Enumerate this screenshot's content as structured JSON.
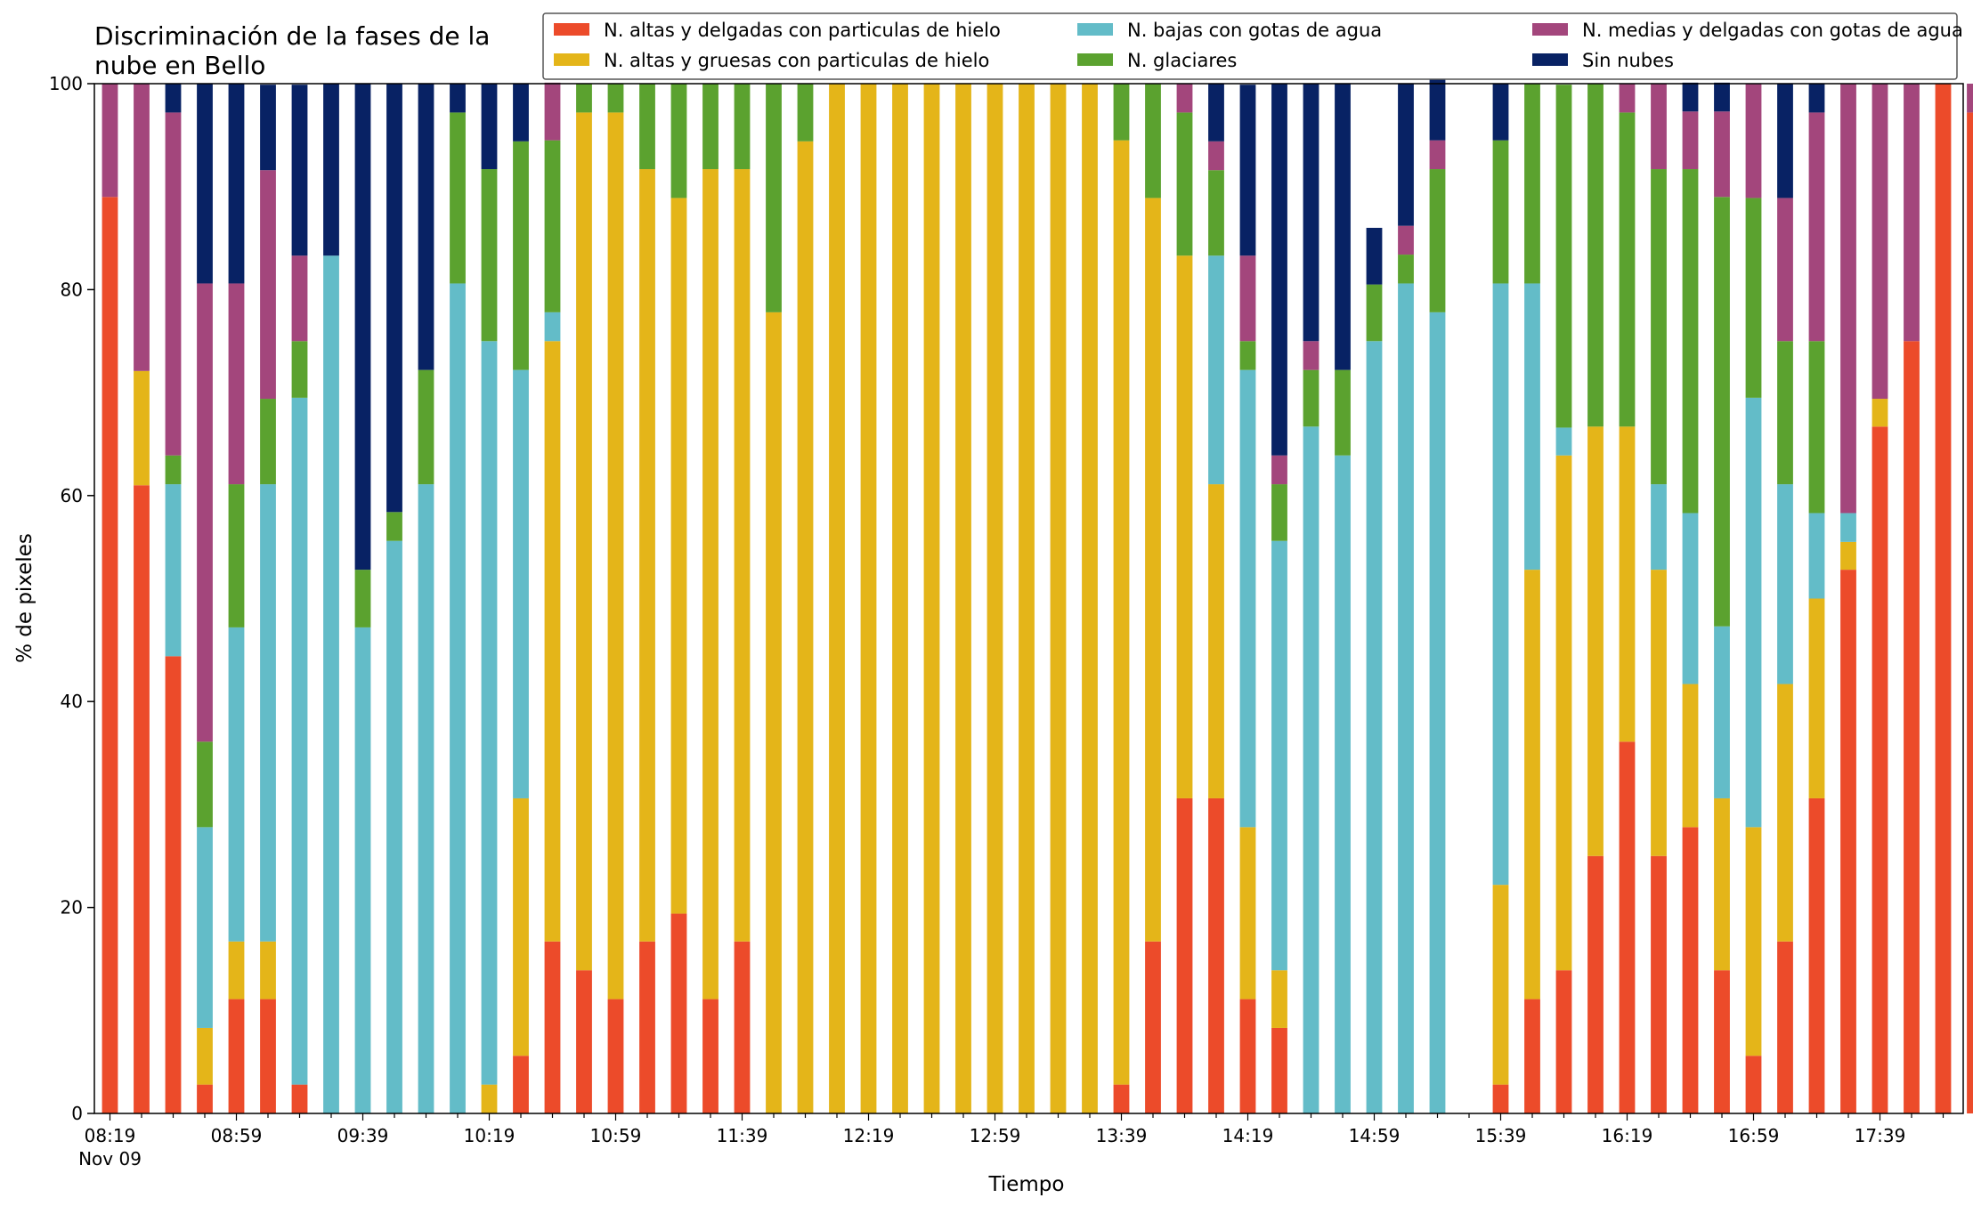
{
  "chart_data": {
    "type": "bar",
    "stacked": true,
    "title_lines": [
      "Discriminación de la fases de la",
      "nube en Bello"
    ],
    "xlabel": "Tiempo",
    "ylabel": "% de pixeles",
    "ylim": [
      0,
      100
    ],
    "yticks": [
      "0",
      "20",
      "40",
      "60",
      "80",
      "100"
    ],
    "x_start": "08:19",
    "x_step_minutes": 10,
    "xtick_labels": [
      "08:19",
      "08:59",
      "09:39",
      "10:19",
      "10:59",
      "11:39",
      "12:19",
      "12:59",
      "13:39",
      "14:19",
      "14:59",
      "15:39",
      "16:19",
      "16:59",
      "17:39"
    ],
    "xtick_date": "Nov 09",
    "legend_position": "top-right",
    "grid": false,
    "series": [
      {
        "name": "N. altas y delgadas con particulas de hielo",
        "color": "#ec4b2a",
        "values": [
          89,
          61,
          44.4,
          2.8,
          11.1,
          11.1,
          2.8,
          0,
          0,
          0,
          0,
          0,
          0,
          5.6,
          16.7,
          13.9,
          11.1,
          16.7,
          19.4,
          11.1,
          16.7,
          0,
          0,
          0,
          0,
          0,
          0,
          0,
          0,
          0,
          0,
          0,
          2.8,
          16.7,
          30.6,
          30.6,
          11.1,
          8.3,
          0,
          0,
          0,
          0,
          0,
          0,
          2.8,
          11.1,
          13.9,
          25,
          36.1,
          25,
          27.8,
          13.9,
          5.6,
          16.7,
          30.6,
          52.8,
          66.7,
          75,
          100,
          97.2
        ]
      },
      {
        "name": "N. altas y gruesas con particulas de hielo",
        "color": "#e4b519",
        "values": [
          0,
          11.1,
          0,
          5.5,
          5.6,
          5.6,
          0,
          0,
          0,
          0,
          0,
          0,
          2.8,
          25,
          58.3,
          83.3,
          86.1,
          75,
          69.5,
          80.6,
          75,
          77.8,
          94.4,
          100,
          100,
          100,
          100,
          100,
          100,
          100,
          100,
          100,
          91.7,
          72.2,
          52.7,
          30.5,
          16.7,
          5.6,
          0,
          0,
          0,
          0,
          0,
          0,
          19.4,
          41.7,
          50,
          41.7,
          30.6,
          27.8,
          13.9,
          16.7,
          22.2,
          25,
          19.4,
          2.7,
          2.7,
          0,
          0,
          0
        ]
      },
      {
        "name": "N. bajas con gotas de agua",
        "color": "#63bcc8",
        "values": [
          0,
          0,
          16.7,
          19.5,
          30.5,
          44.4,
          66.7,
          83.3,
          47.2,
          55.6,
          61.1,
          80.6,
          72.2,
          41.6,
          2.8,
          0,
          0,
          0,
          0,
          0,
          0,
          0,
          0,
          0,
          0,
          0,
          0,
          0,
          0,
          0,
          0,
          0,
          0,
          0,
          0,
          22.2,
          44.4,
          41.7,
          66.7,
          63.9,
          75,
          80.6,
          77.8,
          0,
          58.4,
          27.8,
          2.7,
          0,
          0,
          8.3,
          16.6,
          16.7,
          41.7,
          19.4,
          8.3,
          2.8,
          0,
          0,
          0,
          0
        ]
      },
      {
        "name": "N. glaciares",
        "color": "#5ba22f",
        "values": [
          0,
          0,
          2.8,
          8.3,
          13.9,
          8.3,
          5.5,
          0,
          5.6,
          2.8,
          11.1,
          16.6,
          16.7,
          22.2,
          16.7,
          2.8,
          2.8,
          8.3,
          11.1,
          8.3,
          8.3,
          22.2,
          5.6,
          0,
          0,
          0,
          0,
          0,
          0,
          0,
          0,
          0,
          5.5,
          11.1,
          13.9,
          8.3,
          2.8,
          5.5,
          5.5,
          8.3,
          5.5,
          2.8,
          13.9,
          0,
          13.9,
          19.4,
          33.3,
          33.3,
          30.5,
          30.6,
          33.4,
          41.7,
          19.4,
          13.9,
          16.7,
          0,
          0,
          0,
          0,
          0
        ]
      },
      {
        "name": "N. medias y delgadas con gotas de agua",
        "color": "#a3467c",
        "values": [
          11,
          27.9,
          33.3,
          44.5,
          19.5,
          22.2,
          8.3,
          0,
          0,
          0,
          0,
          0,
          0,
          0,
          5.6,
          0,
          0,
          0,
          0,
          0,
          0,
          0,
          0,
          0,
          0,
          0,
          0,
          0,
          0,
          0,
          0,
          0,
          0,
          0,
          2.8,
          2.8,
          8.3,
          2.8,
          2.8,
          0,
          0,
          2.8,
          2.8,
          0,
          0,
          0,
          0,
          0,
          2.8,
          8.3,
          5.6,
          8.3,
          11.1,
          13.9,
          22.2,
          41.7,
          30.6,
          25,
          0,
          2.8
        ]
      },
      {
        "name": "Sin nubes",
        "color": "#082264",
        "values": [
          0,
          0,
          2.8,
          19.4,
          19.4,
          8.3,
          16.6,
          16.7,
          47.2,
          41.6,
          27.8,
          2.8,
          8.3,
          5.6,
          0,
          0,
          0,
          0,
          0,
          0,
          0,
          0,
          0,
          0,
          0,
          0,
          0,
          0,
          0,
          0,
          0,
          0,
          0,
          0,
          0,
          5.6,
          16.6,
          36.1,
          25,
          27.8,
          5.5,
          13.8,
          8.3,
          0,
          5.5,
          0,
          0,
          0,
          0,
          0,
          2.8,
          2.8,
          0,
          11.1,
          2.8,
          0,
          0,
          0,
          0,
          0
        ]
      }
    ]
  }
}
